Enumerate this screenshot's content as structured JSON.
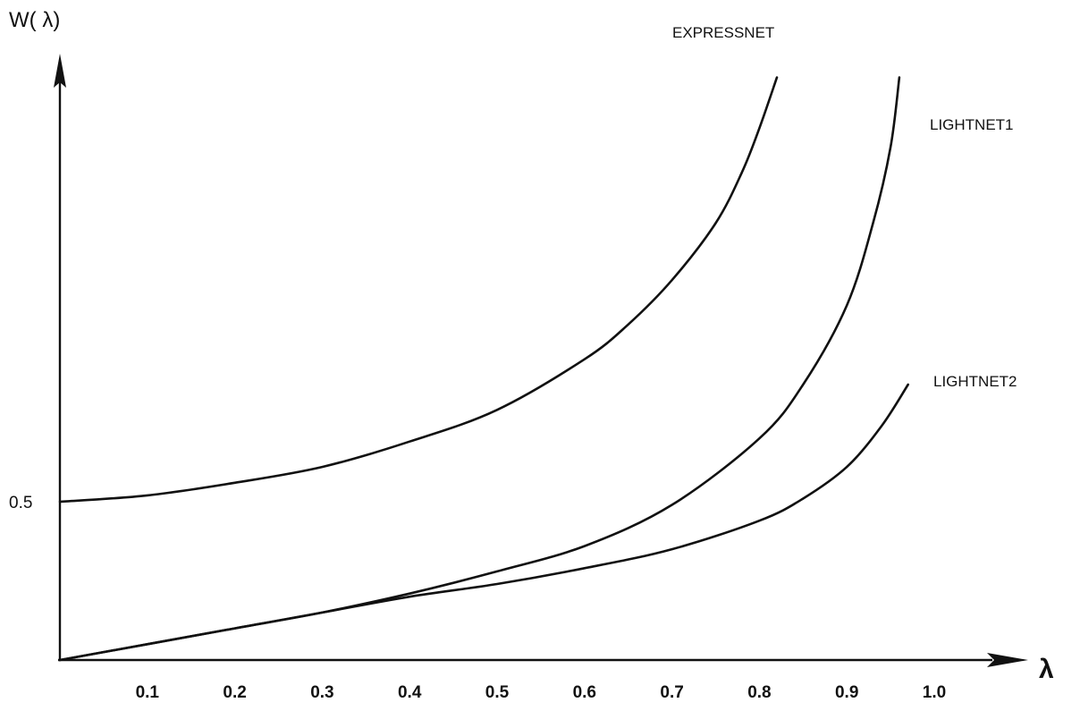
{
  "chart_data": {
    "type": "line",
    "title": "",
    "xlabel": "λ",
    "ylabel": "W( λ)",
    "xlim": [
      0,
      1.0
    ],
    "ylim": [
      0,
      2.0
    ],
    "grid": false,
    "legend": "labels at curve ends",
    "x_ticks": [
      "0.1",
      "0.2",
      "0.3",
      "0.4",
      "0.5",
      "0.6",
      "0.7",
      "0.8",
      "0.9",
      "1.0"
    ],
    "y_ticks": [
      "0.5"
    ],
    "series": [
      {
        "name": "EXPRESSNET",
        "x": [
          0.0,
          0.1,
          0.2,
          0.3,
          0.4,
          0.5,
          0.6,
          0.65,
          0.7,
          0.75,
          0.78,
          0.8,
          0.82
        ],
        "y": [
          0.5,
          0.52,
          0.56,
          0.61,
          0.69,
          0.79,
          0.95,
          1.06,
          1.2,
          1.38,
          1.54,
          1.68,
          1.84
        ]
      },
      {
        "name": "LIGHTNET1",
        "x": [
          0.0,
          0.1,
          0.2,
          0.3,
          0.4,
          0.5,
          0.6,
          0.7,
          0.8,
          0.85,
          0.9,
          0.93,
          0.95,
          0.96
        ],
        "y": [
          0.0,
          0.05,
          0.1,
          0.15,
          0.21,
          0.28,
          0.36,
          0.49,
          0.7,
          0.87,
          1.12,
          1.38,
          1.62,
          1.84
        ]
      },
      {
        "name": "LIGHTNET2",
        "x": [
          0.0,
          0.1,
          0.2,
          0.3,
          0.4,
          0.5,
          0.6,
          0.7,
          0.8,
          0.85,
          0.9,
          0.94,
          0.97
        ],
        "y": [
          0.0,
          0.05,
          0.1,
          0.15,
          0.2,
          0.24,
          0.29,
          0.35,
          0.44,
          0.51,
          0.61,
          0.74,
          0.87
        ]
      }
    ]
  }
}
